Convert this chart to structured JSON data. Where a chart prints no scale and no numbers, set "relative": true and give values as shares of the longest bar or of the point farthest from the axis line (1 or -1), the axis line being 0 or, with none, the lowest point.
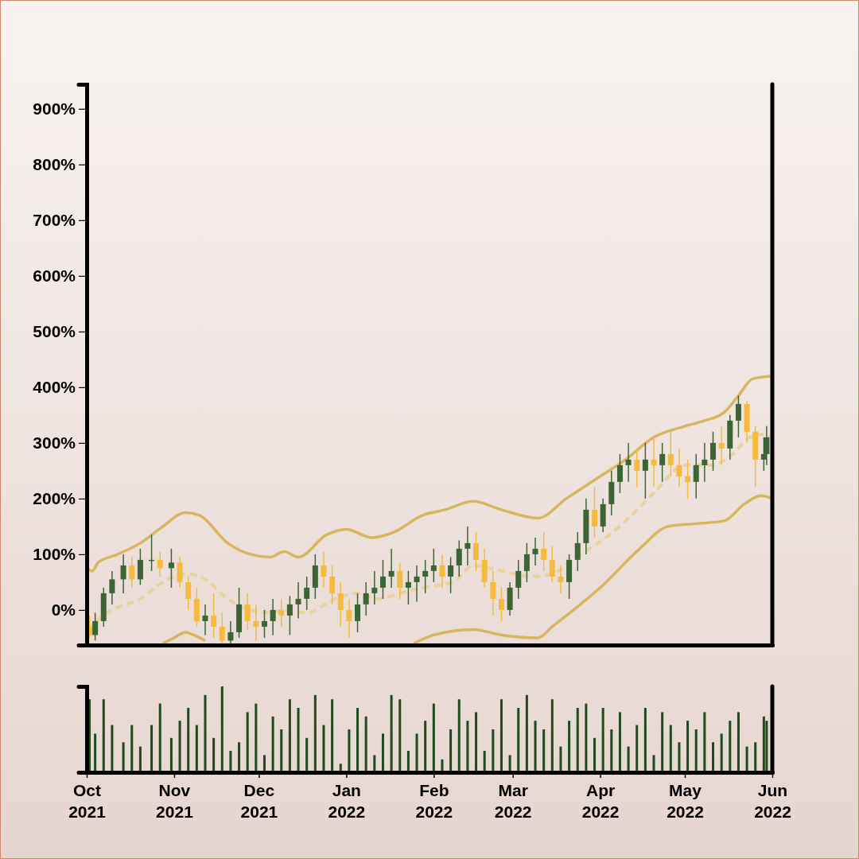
{
  "chart_data": [
    {
      "type": "candlestick",
      "ylim": [
        -63,
        944
      ],
      "yticks": [
        {
          "value": 0,
          "label": "0%"
        },
        {
          "value": 100,
          "label": "100%"
        },
        {
          "value": 200,
          "label": "200%"
        },
        {
          "value": 300,
          "label": "300%"
        },
        {
          "value": 400,
          "label": "400%"
        },
        {
          "value": 500,
          "label": "500%"
        },
        {
          "value": 600,
          "label": "600%"
        },
        {
          "value": 700,
          "label": "700%"
        },
        {
          "value": 800,
          "label": "800%"
        },
        {
          "value": 900,
          "label": "900%"
        }
      ],
      "xlim": [
        "2021-10-01",
        "2022-06-01"
      ],
      "tick_labels": "y",
      "grid": false,
      "x": [
        "2021-10-02",
        "2021-10-04",
        "2021-10-07",
        "2021-10-10",
        "2021-10-14",
        "2021-10-17",
        "2021-10-20",
        "2021-10-24",
        "2021-10-27",
        "2021-10-31",
        "2021-11-03",
        "2021-11-06",
        "2021-11-09",
        "2021-11-12",
        "2021-11-15",
        "2021-11-18",
        "2021-11-21",
        "2021-11-24",
        "2021-11-27",
        "2021-11-30",
        "2021-12-03",
        "2021-12-06",
        "2021-12-09",
        "2021-12-12",
        "2021-12-15",
        "2021-12-18",
        "2021-12-21",
        "2021-12-24",
        "2021-12-27",
        "2021-12-30",
        "2022-01-02",
        "2022-01-05",
        "2022-01-08",
        "2022-01-11",
        "2022-01-14",
        "2022-01-17",
        "2022-01-20",
        "2022-01-23",
        "2022-01-26",
        "2022-01-29",
        "2022-02-01",
        "2022-02-04",
        "2022-02-07",
        "2022-02-10",
        "2022-02-13",
        "2022-02-16",
        "2022-02-19",
        "2022-02-22",
        "2022-02-25",
        "2022-02-28",
        "2022-03-03",
        "2022-03-06",
        "2022-03-09",
        "2022-03-12",
        "2022-03-15",
        "2022-03-18",
        "2022-03-21",
        "2022-03-24",
        "2022-03-27",
        "2022-03-30",
        "2022-04-02",
        "2022-04-05",
        "2022-04-08",
        "2022-04-11",
        "2022-04-14",
        "2022-04-17",
        "2022-04-20",
        "2022-04-23",
        "2022-04-26",
        "2022-04-29",
        "2022-05-02",
        "2022-05-05",
        "2022-05-08",
        "2022-05-11",
        "2022-05-14",
        "2022-05-17",
        "2022-05-20",
        "2022-05-23",
        "2022-05-26",
        "2022-05-29",
        "2022-05-30"
      ],
      "ohlc": [
        [
          -30,
          -10,
          -50,
          -45
        ],
        [
          -45,
          -5,
          -55,
          -20
        ],
        [
          -20,
          40,
          -30,
          30
        ],
        [
          30,
          70,
          10,
          55
        ],
        [
          55,
          100,
          30,
          80
        ],
        [
          80,
          95,
          40,
          55
        ],
        [
          55,
          110,
          45,
          90
        ],
        [
          90,
          135,
          70,
          90
        ],
        [
          90,
          105,
          60,
          75
        ],
        [
          75,
          110,
          40,
          85
        ],
        [
          85,
          95,
          40,
          50
        ],
        [
          50,
          60,
          0,
          20
        ],
        [
          20,
          40,
          -30,
          -20
        ],
        [
          -20,
          10,
          -45,
          -10
        ],
        [
          -10,
          30,
          -50,
          -30
        ],
        [
          -30,
          -5,
          -60,
          -55
        ],
        [
          -55,
          -20,
          -60,
          -40
        ],
        [
          -40,
          40,
          -50,
          10
        ],
        [
          10,
          30,
          -35,
          -20
        ],
        [
          -20,
          10,
          -55,
          -30
        ],
        [
          -30,
          0,
          -50,
          -20
        ],
        [
          -20,
          20,
          -45,
          0
        ],
        [
          0,
          20,
          -30,
          -10
        ],
        [
          -10,
          25,
          -45,
          10
        ],
        [
          10,
          50,
          -15,
          20
        ],
        [
          20,
          60,
          0,
          40
        ],
        [
          40,
          100,
          20,
          80
        ],
        [
          80,
          105,
          40,
          60
        ],
        [
          60,
          80,
          10,
          30
        ],
        [
          30,
          50,
          -30,
          0
        ],
        [
          0,
          20,
          -50,
          -20
        ],
        [
          -20,
          30,
          -40,
          10
        ],
        [
          10,
          50,
          -10,
          30
        ],
        [
          30,
          70,
          10,
          40
        ],
        [
          40,
          90,
          20,
          60
        ],
        [
          60,
          110,
          40,
          70
        ],
        [
          70,
          85,
          20,
          40
        ],
        [
          40,
          70,
          10,
          50
        ],
        [
          50,
          80,
          15,
          60
        ],
        [
          60,
          90,
          30,
          70
        ],
        [
          70,
          110,
          50,
          80
        ],
        [
          80,
          100,
          40,
          60
        ],
        [
          60,
          95,
          30,
          80
        ],
        [
          80,
          125,
          60,
          110
        ],
        [
          110,
          150,
          80,
          120
        ],
        [
          120,
          140,
          70,
          90
        ],
        [
          90,
          110,
          40,
          50
        ],
        [
          50,
          70,
          -10,
          20
        ],
        [
          20,
          40,
          -20,
          0
        ],
        [
          0,
          50,
          -10,
          40
        ],
        [
          40,
          90,
          20,
          70
        ],
        [
          70,
          120,
          50,
          100
        ],
        [
          100,
          130,
          80,
          110
        ],
        [
          110,
          140,
          70,
          90
        ],
        [
          90,
          115,
          50,
          60
        ],
        [
          60,
          80,
          30,
          50
        ],
        [
          50,
          100,
          20,
          90
        ],
        [
          90,
          140,
          70,
          120
        ],
        [
          120,
          200,
          100,
          180
        ],
        [
          180,
          220,
          130,
          150
        ],
        [
          150,
          200,
          140,
          190
        ],
        [
          190,
          250,
          170,
          230
        ],
        [
          230,
          280,
          210,
          260
        ],
        [
          260,
          300,
          230,
          270
        ],
        [
          270,
          290,
          220,
          250
        ],
        [
          250,
          300,
          200,
          270
        ],
        [
          270,
          310,
          220,
          260
        ],
        [
          260,
          300,
          230,
          280
        ],
        [
          280,
          320,
          240,
          260
        ],
        [
          260,
          290,
          220,
          240
        ],
        [
          240,
          270,
          200,
          230
        ],
        [
          230,
          280,
          200,
          260
        ],
        [
          260,
          300,
          230,
          270
        ],
        [
          270,
          320,
          250,
          300
        ],
        [
          300,
          330,
          260,
          290
        ],
        [
          290,
          350,
          270,
          340
        ],
        [
          340,
          385,
          310,
          370
        ],
        [
          370,
          375,
          300,
          320
        ],
        [
          320,
          330,
          220,
          270
        ],
        [
          270,
          310,
          250,
          280
        ],
        [
          280,
          330,
          260,
          310
        ]
      ],
      "colors": [
        "#f4bb3f",
        "#3b6634",
        "#3b6634",
        "#3b6634",
        "#3b6634",
        "#f4bb3f",
        "#3b6634",
        "#3b6634",
        "#f4bb3f",
        "#3b6634",
        "#f4bb3f",
        "#f4bb3f",
        "#f4bb3f",
        "#3b6634",
        "#f4bb3f",
        "#f4bb3f",
        "#3b6634",
        "#3b6634",
        "#f4bb3f",
        "#f4bb3f",
        "#3b6634",
        "#3b6634",
        "#f4bb3f",
        "#3b6634",
        "#3b6634",
        "#3b6634",
        "#3b6634",
        "#f4bb3f",
        "#f4bb3f",
        "#f4bb3f",
        "#f4bb3f",
        "#3b6634",
        "#3b6634",
        "#3b6634",
        "#3b6634",
        "#3b6634",
        "#f4bb3f",
        "#3b6634",
        "#3b6634",
        "#3b6634",
        "#3b6634",
        "#f4bb3f",
        "#3b6634",
        "#3b6634",
        "#3b6634",
        "#f4bb3f",
        "#f4bb3f",
        "#f4bb3f",
        "#f4bb3f",
        "#3b6634",
        "#3b6634",
        "#3b6634",
        "#3b6634",
        "#f4bb3f",
        "#f4bb3f",
        "#f4bb3f",
        "#3b6634",
        "#3b6634",
        "#3b6634",
        "#f4bb3f",
        "#3b6634",
        "#3b6634",
        "#3b6634",
        "#3b6634",
        "#f4bb3f",
        "#3b6634",
        "#f4bb3f",
        "#3b6634",
        "#f4bb3f",
        "#f4bb3f",
        "#f4bb3f",
        "#3b6634",
        "#3b6634",
        "#3b6634",
        "#f4bb3f",
        "#3b6634",
        "#3b6634",
        "#f4bb3f",
        "#f4bb3f",
        "#3b6634",
        "#3b6634"
      ],
      "series": [
        {
          "type": "line",
          "color": "#d6b65e",
          "line_style": "solid",
          "x": [
            "2021-10-01",
            "2021-10-03",
            "2021-10-05",
            "2021-10-12",
            "2021-10-20",
            "2021-10-28",
            "2021-11-05",
            "2021-11-10",
            "2021-11-20",
            "2021-11-28",
            "2021-12-05",
            "2021-12-10",
            "2021-12-15",
            "2021-12-25",
            "2022-01-01",
            "2022-01-10",
            "2022-01-18",
            "2022-01-28",
            "2022-02-05",
            "2022-02-15",
            "2022-02-25",
            "2022-03-10",
            "2022-03-20",
            "2022-04-01",
            "2022-04-10",
            "2022-04-20",
            "2022-05-01",
            "2022-05-08",
            "2022-05-15",
            "2022-05-20",
            "2022-05-25",
            "2022-06-01"
          ],
          "values": [
            75,
            70,
            85,
            100,
            120,
            150,
            175,
            170,
            120,
            100,
            95,
            105,
            95,
            135,
            145,
            130,
            140,
            170,
            180,
            195,
            180,
            165,
            200,
            240,
            270,
            310,
            330,
            340,
            355,
            385,
            415,
            420
          ]
        },
        {
          "type": "line",
          "color": "#e9d29b",
          "line_style": "dashed",
          "x": [
            "2021-10-01",
            "2021-10-10",
            "2021-10-20",
            "2021-10-28",
            "2021-11-05",
            "2021-11-12",
            "2021-11-20",
            "2021-11-28",
            "2021-12-05",
            "2021-12-10",
            "2021-12-18",
            "2021-12-28",
            "2022-01-05",
            "2022-01-12",
            "2022-01-20",
            "2022-01-28",
            "2022-02-08",
            "2022-02-15",
            "2022-02-25",
            "2022-03-08",
            "2022-03-15",
            "2022-03-25",
            "2022-04-03",
            "2022-04-10",
            "2022-04-20",
            "2022-05-01",
            "2022-05-10",
            "2022-05-18",
            "2022-05-24",
            "2022-05-28",
            "2022-06-01"
          ],
          "values": [
            -35,
            0,
            20,
            50,
            65,
            55,
            20,
            0,
            -5,
            0,
            -5,
            20,
            30,
            20,
            30,
            40,
            50,
            80,
            70,
            60,
            65,
            100,
            130,
            160,
            210,
            260,
            260,
            280,
            310,
            315,
            310
          ]
        },
        {
          "type": "line",
          "color": "#d6b65e",
          "line_style": "solid",
          "x": [
            "2021-10-28",
            "2021-11-01",
            "2021-11-05",
            "2021-11-08",
            "2021-11-12",
            "2021-11-15",
            "2022-01-25",
            "2022-02-01",
            "2022-02-15",
            "2022-02-25",
            "2022-03-10",
            "2022-03-15",
            "2022-03-25",
            "2022-04-01",
            "2022-04-15",
            "2022-04-25",
            "2022-05-05",
            "2022-05-15",
            "2022-05-22",
            "2022-05-28",
            "2022-06-01"
          ],
          "values": [
            -60,
            -50,
            -40,
            -45,
            -55,
            null,
            -60,
            -45,
            -35,
            -45,
            -50,
            -30,
            10,
            40,
            110,
            150,
            155,
            160,
            190,
            205,
            200
          ]
        }
      ]
    },
    {
      "type": "bar",
      "relative": true,
      "color": "#1f4a1c",
      "xlim": [
        "2021-10-01",
        "2022-06-01"
      ],
      "tick_labels": "x",
      "xticks": [
        {
          "value": "2021-10-01",
          "label": "Oct 2021"
        },
        {
          "value": "2021-11-01",
          "label": "Nov 2021"
        },
        {
          "value": "2021-12-01",
          "label": "Dec 2021"
        },
        {
          "value": "2022-01-01",
          "label": "Jan 2022"
        },
        {
          "value": "2022-02-01",
          "label": "Feb 2022"
        },
        {
          "value": "2022-03-01",
          "label": "Mar 2022"
        },
        {
          "value": "2022-04-01",
          "label": "Apr 2022"
        },
        {
          "value": "2022-05-01",
          "label": "May 2022"
        },
        {
          "value": "2022-06-01",
          "label": "Jun 2022"
        }
      ],
      "x": [
        "2021-10-02",
        "2021-10-04",
        "2021-10-07",
        "2021-10-10",
        "2021-10-14",
        "2021-10-17",
        "2021-10-20",
        "2021-10-24",
        "2021-10-27",
        "2021-10-31",
        "2021-11-03",
        "2021-11-06",
        "2021-11-09",
        "2021-11-12",
        "2021-11-15",
        "2021-11-18",
        "2021-11-21",
        "2021-11-24",
        "2021-11-27",
        "2021-11-30",
        "2021-12-03",
        "2021-12-06",
        "2021-12-09",
        "2021-12-12",
        "2021-12-15",
        "2021-12-18",
        "2021-12-21",
        "2021-12-24",
        "2021-12-27",
        "2021-12-30",
        "2022-01-02",
        "2022-01-05",
        "2022-01-08",
        "2022-01-11",
        "2022-01-14",
        "2022-01-17",
        "2022-01-20",
        "2022-01-23",
        "2022-01-26",
        "2022-01-29",
        "2022-02-01",
        "2022-02-04",
        "2022-02-07",
        "2022-02-10",
        "2022-02-13",
        "2022-02-16",
        "2022-02-19",
        "2022-02-22",
        "2022-02-25",
        "2022-02-28",
        "2022-03-03",
        "2022-03-06",
        "2022-03-09",
        "2022-03-12",
        "2022-03-15",
        "2022-03-18",
        "2022-03-21",
        "2022-03-24",
        "2022-03-27",
        "2022-03-30",
        "2022-04-02",
        "2022-04-05",
        "2022-04-08",
        "2022-04-11",
        "2022-04-14",
        "2022-04-17",
        "2022-04-20",
        "2022-04-23",
        "2022-04-26",
        "2022-04-29",
        "2022-05-02",
        "2022-05-05",
        "2022-05-08",
        "2022-05-11",
        "2022-05-14",
        "2022-05-17",
        "2022-05-20",
        "2022-05-23",
        "2022-05-26",
        "2022-05-29",
        "2022-05-30"
      ],
      "values": [
        0.85,
        0.45,
        0.85,
        0.55,
        0.35,
        0.55,
        0.3,
        0.55,
        0.8,
        0.4,
        0.6,
        0.75,
        0.55,
        0.9,
        0.4,
        1,
        0.25,
        0.35,
        0.7,
        0.8,
        0.2,
        0.65,
        0.5,
        0.85,
        0.75,
        0.4,
        0.9,
        0.55,
        0.85,
        0.1,
        0.5,
        0.75,
        0.65,
        0.2,
        0.45,
        0.9,
        0.85,
        0.25,
        0.45,
        0.6,
        0.8,
        0.15,
        0.5,
        0.85,
        0.6,
        0.7,
        0.25,
        0.5,
        0.85,
        0.2,
        0.75,
        0.9,
        0.6,
        0.5,
        0.85,
        0.3,
        0.6,
        0.75,
        0.8,
        0.4,
        0.75,
        0.5,
        0.7,
        0.3,
        0.55,
        0.75,
        0.2,
        0.7,
        0.55,
        0.35,
        0.6,
        0.5,
        0.7,
        0.35,
        0.45,
        0.6,
        0.7,
        0.3,
        0.35,
        0.65,
        0.6
      ]
    }
  ]
}
